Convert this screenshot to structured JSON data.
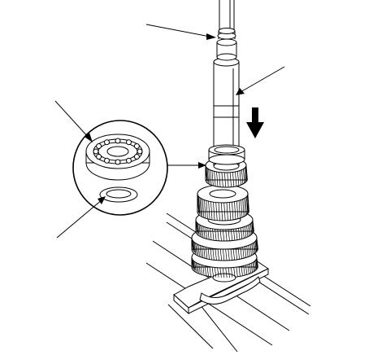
{
  "figure": {
    "type": "technical-line-illustration",
    "labels": [],
    "callout_leaders": 4,
    "colors": {
      "ink": "#000000",
      "paper": "#ffffff"
    },
    "icons": [
      "down-arrow-icon",
      "right-arrow-icon"
    ]
  }
}
